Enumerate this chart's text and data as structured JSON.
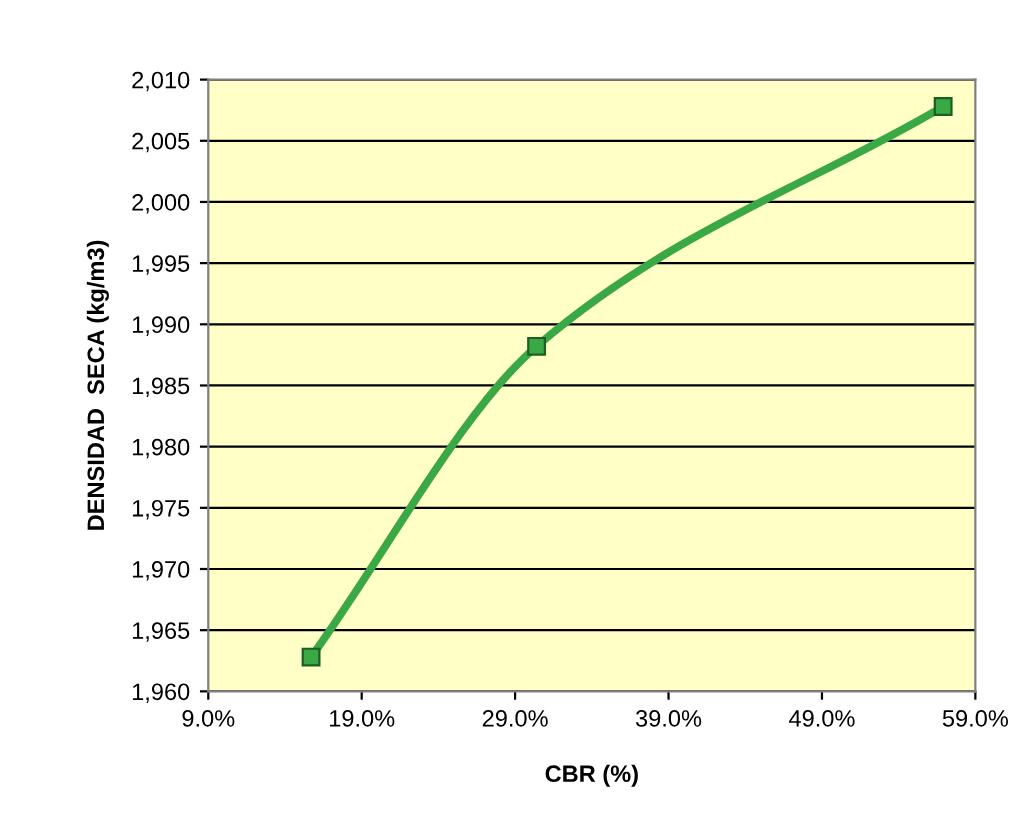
{
  "chart_data": {
    "type": "line",
    "xlabel": "CBR (%)",
    "ylabel": "DENSIDAD  SECA (kg/m3)",
    "series": [
      {
        "color": "#3aa845",
        "x": [
          15.7,
          30.4,
          56.9
        ],
        "values": [
          1962.8,
          1988.2,
          2007.8
        ]
      }
    ],
    "xlim": [
      9,
      59
    ],
    "xticks": [
      {
        "value": 9,
        "label": "9.0%"
      },
      {
        "value": 19,
        "label": "19.0%"
      },
      {
        "value": 29,
        "label": "29.0%"
      },
      {
        "value": 39,
        "label": "39.0%"
      },
      {
        "value": 49,
        "label": "49.0%"
      },
      {
        "value": 59,
        "label": "59.0%"
      }
    ],
    "ylim": [
      1960,
      2010
    ],
    "yticks": [
      {
        "value": 1960,
        "label": "1,960"
      },
      {
        "value": 1965,
        "label": "1,965"
      },
      {
        "value": 1970,
        "label": "1,970"
      },
      {
        "value": 1975,
        "label": "1,975"
      },
      {
        "value": 1980,
        "label": "1,980"
      },
      {
        "value": 1985,
        "label": "1,985"
      },
      {
        "value": 1990,
        "label": "1,990"
      },
      {
        "value": 1995,
        "label": "1,995"
      },
      {
        "value": 2000,
        "label": "2,000"
      },
      {
        "value": 2005,
        "label": "2,005"
      },
      {
        "value": 2010,
        "label": "2,010"
      }
    ],
    "grid": "y",
    "marker": "square",
    "line_style": "solid",
    "legend": false
  }
}
